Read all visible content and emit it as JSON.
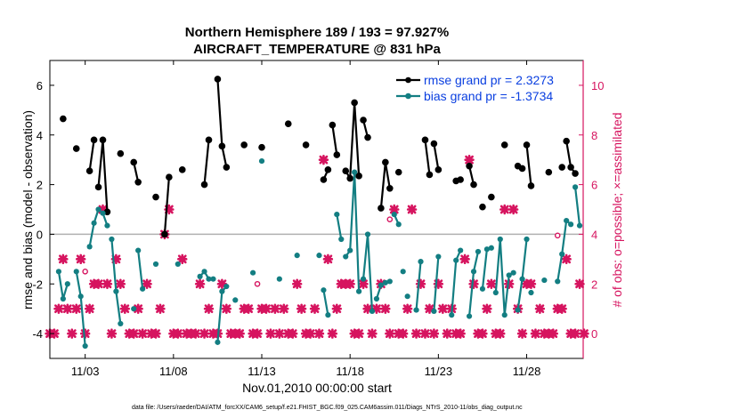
{
  "chart_data": {
    "type": "line",
    "title": "Northern Hemisphere 189 / 193 = 97.927%",
    "subtitle": "AIRCRAFT_TEMPERATURE @ 831 hPa",
    "xlabel": "Nov.01,2010 00:00:00 start",
    "ylabel": "rmse and bias (model - observation)",
    "ylabel_right": "# of obs: o=possible; ×=assimilated",
    "footnote": "data file: /Users/raeder/DAI/ATM_forcXX/CAM6_setup/f.e21.FHIST_BGC.f09_025.CAM6assim.011/Diags_NTrS_2010-11/obs_diag_output.nc",
    "xlim": [
      1.0,
      31.2
    ],
    "ylim": [
      -5,
      7
    ],
    "ylim_right": [
      -1,
      11
    ],
    "x_ticks": [
      3,
      8,
      13,
      18,
      23,
      28
    ],
    "x_tick_labels": [
      "11/03",
      "11/08",
      "11/13",
      "11/18",
      "11/23",
      "11/28"
    ],
    "y_ticks": [
      -4,
      -2,
      0,
      2,
      4,
      6
    ],
    "y_ticks_right": [
      0,
      2,
      4,
      6,
      8,
      10
    ],
    "grid": false,
    "legend_position": "top-right",
    "colors": {
      "rmse": "#000000",
      "bias": "#137e82",
      "counts": "#d6145f",
      "zero_line": "#b0b0b0"
    },
    "series": [
      {
        "name": "rmse grand pr = 2.3273",
        "values": [
          [
            [
              1.75,
              4.65
            ]
          ],
          [
            [
              2.5,
              3.45
            ]
          ],
          [
            [
              3.25,
              2.55
            ],
            [
              3.5,
              3.8
            ]
          ],
          [
            [
              3.75,
              1.9
            ],
            [
              4.0,
              3.8
            ],
            [
              4.25,
              0.9
            ]
          ],
          [
            [
              5.0,
              3.25
            ]
          ],
          [
            [
              5.75,
              2.9
            ],
            [
              6.0,
              2.1
            ]
          ],
          [
            [
              7.0,
              1.5
            ]
          ],
          [
            [
              7.5,
              0.0
            ],
            [
              7.75,
              2.3
            ]
          ],
          [
            [
              8.5,
              2.6
            ]
          ],
          [
            [
              9.75,
              2.0
            ],
            [
              10.0,
              3.8
            ]
          ],
          [
            [
              10.5,
              6.25
            ],
            [
              10.75,
              3.55
            ],
            [
              11.0,
              2.7
            ]
          ],
          [
            [
              12.0,
              3.6
            ]
          ],
          [
            [
              13.0,
              3.5
            ]
          ],
          [
            [
              14.5,
              4.45
            ]
          ],
          [
            [
              15.5,
              3.6
            ]
          ],
          [
            [
              16.5,
              2.2
            ],
            [
              16.75,
              2.6
            ]
          ],
          [
            [
              17.0,
              4.4
            ],
            [
              17.25,
              3.2
            ]
          ],
          [
            [
              17.75,
              2.55
            ],
            [
              18.0,
              2.25
            ],
            [
              18.25,
              5.3
            ],
            [
              18.5,
              2.35
            ]
          ],
          [
            [
              18.75,
              4.6
            ],
            [
              19.0,
              3.9
            ]
          ],
          [
            [
              19.75,
              1.05
            ],
            [
              20.0,
              2.9
            ],
            [
              20.25,
              1.85
            ]
          ],
          [
            [
              20.75,
              2.5
            ]
          ],
          [
            [
              22.25,
              3.8
            ],
            [
              22.5,
              2.4
            ]
          ],
          [
            [
              22.75,
              3.65
            ],
            [
              23.0,
              2.6
            ]
          ],
          [
            [
              24.0,
              2.15
            ],
            [
              24.25,
              2.2
            ]
          ],
          [
            [
              24.75,
              2.75
            ],
            [
              25.0,
              2.0
            ]
          ],
          [
            [
              25.5,
              1.1
            ]
          ],
          [
            [
              26.0,
              1.5
            ]
          ],
          [
            [
              26.75,
              3.6
            ]
          ],
          [
            [
              27.5,
              2.75
            ],
            [
              27.75,
              2.65
            ]
          ],
          [
            [
              28.0,
              3.6
            ],
            [
              28.25,
              1.95
            ]
          ],
          [
            [
              29.25,
              2.5
            ]
          ],
          [
            [
              30.0,
              2.7
            ]
          ],
          [
            [
              30.25,
              3.75
            ],
            [
              30.5,
              2.7
            ],
            [
              30.75,
              2.45
            ]
          ]
        ]
      },
      {
        "name": "bias grand pr = -1.3734",
        "values": [
          [
            [
              1.5,
              -1.5
            ],
            [
              1.75,
              -2.6
            ],
            [
              2.0,
              -2.0
            ]
          ],
          [
            [
              2.5,
              -1.5
            ],
            [
              2.75,
              -2.5
            ],
            [
              3.0,
              -4.5
            ]
          ],
          [
            [
              3.25,
              -0.5
            ],
            [
              3.5,
              0.45
            ],
            [
              3.75,
              1.0
            ],
            [
              4.0,
              0.85
            ],
            [
              4.25,
              0.35
            ]
          ],
          [
            [
              4.5,
              -0.2
            ],
            [
              4.75,
              -2.3
            ],
            [
              5.0,
              -3.6
            ]
          ],
          [
            [
              5.75,
              -3.0
            ]
          ],
          [
            [
              6.0,
              -0.65
            ],
            [
              6.25,
              -2.2
            ]
          ],
          [
            [
              7.0,
              -1.2
            ]
          ],
          [
            [
              8.25,
              -1.2
            ]
          ],
          [
            [
              9.5,
              -1.7
            ],
            [
              9.75,
              -1.5
            ],
            [
              10.0,
              -1.8
            ],
            [
              10.25,
              -1.8
            ]
          ],
          [
            [
              10.5,
              -4.35
            ],
            [
              10.75,
              -2.3
            ],
            [
              11.0,
              -2.1
            ]
          ],
          [
            [
              11.5,
              -2.65
            ]
          ],
          [
            [
              12.5,
              -1.55
            ]
          ],
          [
            [
              13.0,
              2.95
            ]
          ],
          [
            [
              14.0,
              -1.8
            ]
          ],
          [
            [
              15.0,
              -0.85
            ]
          ],
          [
            [
              16.25,
              -0.85
            ]
          ],
          [
            [
              16.5,
              -2.25
            ],
            [
              16.75,
              -3.25
            ]
          ],
          [
            [
              17.25,
              0.8
            ],
            [
              17.5,
              -0.2
            ]
          ],
          [
            [
              17.75,
              -0.9
            ],
            [
              18.0,
              -0.65
            ],
            [
              18.25,
              2.5
            ],
            [
              18.5,
              -2.3
            ]
          ],
          [
            [
              18.75,
              -1.8
            ],
            [
              19.0,
              0.0
            ],
            [
              19.25,
              -3.1
            ]
          ],
          [
            [
              19.5,
              -2.6
            ],
            [
              19.75,
              -2.05
            ],
            [
              20.0,
              -1.95
            ],
            [
              20.25,
              -1.9
            ]
          ],
          [
            [
              20.5,
              0.8
            ],
            [
              20.75,
              0.4
            ]
          ],
          [
            [
              21.0,
              -1.5
            ]
          ],
          [
            [
              21.25,
              -2.5
            ]
          ],
          [
            [
              21.75,
              -3.05
            ],
            [
              22.0,
              -1.1
            ]
          ],
          [
            [
              22.75,
              -3.1
            ],
            [
              23.0,
              -0.9
            ]
          ],
          [
            [
              23.75,
              -3.25
            ],
            [
              24.0,
              -1.05
            ],
            [
              24.25,
              -0.65
            ]
          ],
          [
            [
              24.75,
              -3.3
            ],
            [
              25.0,
              -1.5
            ],
            [
              25.25,
              -0.7
            ]
          ],
          [
            [
              25.5,
              -2.2
            ],
            [
              25.75,
              -0.6
            ]
          ],
          [
            [
              26.0,
              -0.55
            ]
          ],
          [
            [
              26.25,
              -2.35
            ],
            [
              26.5,
              -0.2
            ],
            [
              26.75,
              -3.25
            ],
            [
              27.0,
              -1.65
            ],
            [
              27.25,
              -1.55
            ]
          ],
          [
            [
              27.5,
              -3.05
            ],
            [
              27.75,
              -1.8
            ],
            [
              28.0,
              -0.2
            ]
          ],
          [
            [
              28.25,
              -2.35
            ]
          ],
          [
            [
              29.0,
              -1.85
            ]
          ],
          [
            [
              29.75,
              -1.9
            ],
            [
              30.0,
              -0.8
            ],
            [
              30.25,
              0.55
            ],
            [
              30.5,
              0.4
            ]
          ],
          [
            [
              30.75,
              1.9
            ],
            [
              31.0,
              0.35
            ]
          ]
        ]
      }
    ],
    "obs_counts": {
      "assimilated": [
        [
          1.0,
          0
        ],
        [
          1.25,
          0
        ],
        [
          1.5,
          1
        ],
        [
          1.75,
          3
        ],
        [
          2.0,
          1
        ],
        [
          2.25,
          0
        ],
        [
          2.5,
          1
        ],
        [
          2.75,
          3
        ],
        [
          3.0,
          0
        ],
        [
          3.25,
          1
        ],
        [
          3.5,
          2
        ],
        [
          3.75,
          2
        ],
        [
          4.0,
          5
        ],
        [
          4.25,
          2
        ],
        [
          4.5,
          0
        ],
        [
          4.75,
          3
        ],
        [
          5.0,
          2
        ],
        [
          5.25,
          1
        ],
        [
          5.5,
          0
        ],
        [
          5.75,
          0
        ],
        [
          6.0,
          1
        ],
        [
          6.25,
          0
        ],
        [
          6.5,
          2
        ],
        [
          6.75,
          0
        ],
        [
          7.0,
          0
        ],
        [
          7.25,
          1
        ],
        [
          7.5,
          4
        ],
        [
          7.75,
          5
        ],
        [
          8.0,
          0
        ],
        [
          8.25,
          0
        ],
        [
          8.5,
          3
        ],
        [
          8.75,
          0
        ],
        [
          9.0,
          0
        ],
        [
          9.25,
          0
        ],
        [
          9.5,
          2
        ],
        [
          9.75,
          0
        ],
        [
          10.0,
          1
        ],
        [
          10.25,
          0
        ],
        [
          10.5,
          0
        ],
        [
          10.75,
          2
        ],
        [
          11.0,
          1
        ],
        [
          11.25,
          0
        ],
        [
          11.5,
          0
        ],
        [
          11.75,
          0
        ],
        [
          12.0,
          1
        ],
        [
          12.25,
          1
        ],
        [
          12.5,
          0
        ],
        [
          12.75,
          0
        ],
        [
          13.0,
          1
        ],
        [
          13.25,
          1
        ],
        [
          13.5,
          0
        ],
        [
          13.75,
          1
        ],
        [
          14.0,
          0
        ],
        [
          14.25,
          1
        ],
        [
          14.5,
          0
        ],
        [
          14.75,
          0
        ],
        [
          15.0,
          2
        ],
        [
          15.25,
          1
        ],
        [
          15.5,
          0
        ],
        [
          15.75,
          0
        ],
        [
          16.0,
          1
        ],
        [
          16.25,
          0
        ],
        [
          16.5,
          7
        ],
        [
          16.75,
          3
        ],
        [
          17.0,
          0
        ],
        [
          17.25,
          1
        ],
        [
          17.5,
          2
        ],
        [
          17.75,
          2
        ],
        [
          18.0,
          2
        ],
        [
          18.25,
          0
        ],
        [
          18.5,
          0
        ],
        [
          18.75,
          2
        ],
        [
          19.0,
          1
        ],
        [
          19.25,
          0
        ],
        [
          19.5,
          1
        ],
        [
          19.75,
          2
        ],
        [
          20.0,
          1
        ],
        [
          20.25,
          0
        ],
        [
          20.5,
          5
        ],
        [
          20.75,
          0
        ],
        [
          21.0,
          0
        ],
        [
          21.25,
          1
        ],
        [
          21.5,
          5
        ],
        [
          21.75,
          0
        ],
        [
          22.0,
          2
        ],
        [
          22.25,
          0
        ],
        [
          22.5,
          1
        ],
        [
          22.75,
          0
        ],
        [
          23.0,
          2
        ],
        [
          23.25,
          1
        ],
        [
          23.5,
          0
        ],
        [
          23.75,
          1
        ],
        [
          24.0,
          0
        ],
        [
          24.25,
          0
        ],
        [
          24.5,
          3
        ],
        [
          24.75,
          7
        ],
        [
          25.0,
          2
        ],
        [
          25.25,
          0
        ],
        [
          25.5,
          0
        ],
        [
          25.75,
          1
        ],
        [
          26.0,
          2
        ],
        [
          26.25,
          0
        ],
        [
          26.5,
          0
        ],
        [
          26.75,
          5
        ],
        [
          27.0,
          2
        ],
        [
          27.25,
          5
        ],
        [
          27.5,
          1
        ],
        [
          27.75,
          0
        ],
        [
          28.0,
          2
        ],
        [
          28.25,
          2
        ],
        [
          28.5,
          0
        ],
        [
          28.75,
          1
        ],
        [
          29.0,
          0
        ],
        [
          29.25,
          0
        ],
        [
          29.5,
          0
        ],
        [
          29.75,
          1
        ],
        [
          30.0,
          1
        ],
        [
          30.25,
          3
        ],
        [
          30.5,
          0
        ],
        [
          30.75,
          0
        ],
        [
          31.0,
          2
        ],
        [
          31.25,
          0
        ]
      ],
      "possible_only": [
        [
          3.0,
          2.5
        ],
        [
          12.75,
          2.0
        ],
        [
          20.25,
          4.6
        ],
        [
          29.75,
          3.95
        ]
      ]
    }
  }
}
